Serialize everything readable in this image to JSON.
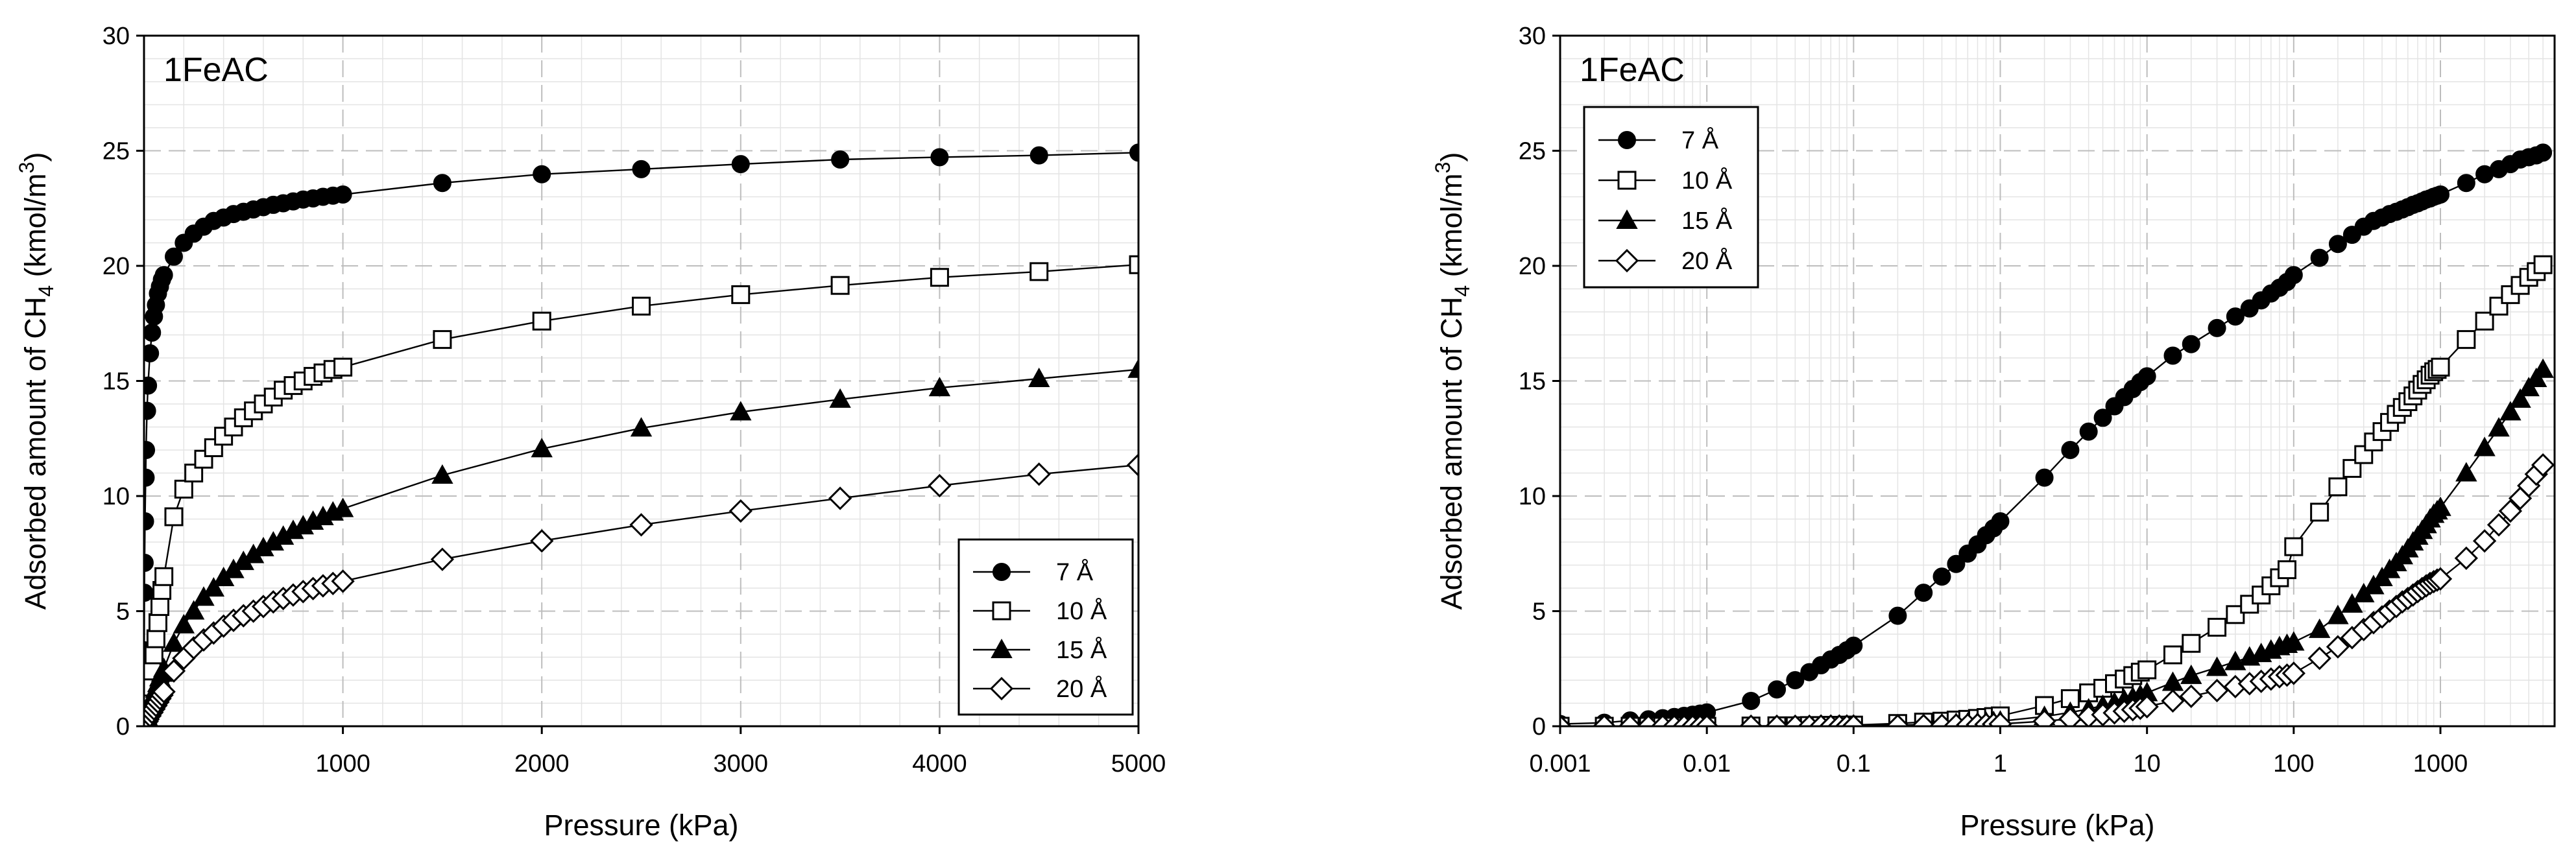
{
  "chart_data": [
    {
      "type": "line",
      "panel_label": "1FeAC",
      "xlabel": "Pressure (kPa)",
      "ylabel": {
        "prefix": "Adsorbed amount of CH",
        "sub": "4",
        "mid": " (kmol/m",
        "sup": "3",
        "suffix": ")"
      },
      "xscale": "linear",
      "xlim": [
        0,
        5000
      ],
      "ylim": [
        0,
        30
      ],
      "xticks": [
        1000,
        2000,
        3000,
        4000,
        5000
      ],
      "xtick_labels": [
        "1000",
        "2000",
        "3000",
        "4000",
        "5000"
      ],
      "yticks": [
        0,
        5,
        10,
        15,
        20,
        25,
        30
      ],
      "ytick_labels": [
        "0",
        "5",
        "10",
        "15",
        "20",
        "25",
        "30"
      ],
      "legend_position": "bottom-right",
      "series": [
        {
          "name": "7 Å",
          "marker": "filled-circle",
          "x": [
            0.5,
            1,
            2,
            3,
            5,
            8,
            10,
            15,
            20,
            30,
            40,
            50,
            60,
            70,
            80,
            90,
            100,
            150,
            200,
            250,
            300,
            350,
            400,
            450,
            500,
            550,
            600,
            650,
            700,
            750,
            800,
            850,
            900,
            950,
            1000,
            1500,
            2000,
            2500,
            3000,
            3500,
            4000,
            4500,
            5000
          ],
          "values": [
            0.8,
            3.3,
            5.8,
            7.1,
            8.9,
            10.8,
            12.0,
            13.7,
            14.8,
            16.2,
            17.1,
            17.8,
            18.3,
            18.8,
            19.1,
            19.4,
            19.6,
            20.4,
            21.0,
            21.4,
            21.7,
            21.95,
            22.1,
            22.25,
            22.35,
            22.45,
            22.55,
            22.65,
            22.72,
            22.8,
            22.88,
            22.93,
            23.0,
            23.05,
            23.1,
            23.6,
            23.98,
            24.2,
            24.42,
            24.62,
            24.72,
            24.8,
            24.92
          ]
        },
        {
          "name": "10 Å",
          "marker": "open-square",
          "x": [
            1,
            2,
            5,
            10,
            15,
            20,
            30,
            40,
            50,
            60,
            70,
            80,
            90,
            100,
            150,
            200,
            250,
            300,
            350,
            400,
            450,
            500,
            550,
            600,
            650,
            700,
            750,
            800,
            850,
            900,
            950,
            1000,
            1500,
            2000,
            2500,
            3000,
            3500,
            4000,
            4500,
            5000
          ],
          "values": [
            0.05,
            0.1,
            0.25,
            0.5,
            0.8,
            1.1,
            1.7,
            2.4,
            3.1,
            3.8,
            4.5,
            5.2,
            5.9,
            6.5,
            9.1,
            10.3,
            11.0,
            11.6,
            12.1,
            12.6,
            13.0,
            13.4,
            13.7,
            14.0,
            14.3,
            14.6,
            14.8,
            15.0,
            15.2,
            15.35,
            15.5,
            15.6,
            16.8,
            17.6,
            18.25,
            18.75,
            19.15,
            19.5,
            19.75,
            20.05
          ]
        },
        {
          "name": "15 Å",
          "marker": "filled-triangle",
          "x": [
            1,
            2,
            5,
            10,
            15,
            20,
            30,
            40,
            50,
            60,
            70,
            80,
            90,
            100,
            150,
            200,
            250,
            300,
            350,
            400,
            450,
            500,
            550,
            600,
            650,
            700,
            750,
            800,
            850,
            900,
            950,
            1000,
            1500,
            2000,
            2500,
            3000,
            3500,
            4000,
            4500,
            5000
          ],
          "values": [
            0.03,
            0.05,
            0.12,
            0.25,
            0.4,
            0.55,
            0.8,
            1.1,
            1.35,
            1.6,
            1.85,
            2.1,
            2.3,
            2.5,
            3.6,
            4.4,
            5.0,
            5.6,
            6.0,
            6.45,
            6.8,
            7.15,
            7.45,
            7.75,
            8.0,
            8.25,
            8.5,
            8.7,
            8.9,
            9.1,
            9.3,
            9.45,
            10.9,
            12.05,
            12.95,
            13.65,
            14.2,
            14.7,
            15.1,
            15.5
          ]
        },
        {
          "name": "20 Å",
          "marker": "open-diamond",
          "x": [
            1,
            2,
            5,
            10,
            15,
            20,
            30,
            40,
            50,
            60,
            70,
            80,
            90,
            100,
            150,
            200,
            250,
            300,
            350,
            400,
            450,
            500,
            550,
            600,
            650,
            700,
            750,
            800,
            850,
            900,
            950,
            1000,
            1500,
            2000,
            2500,
            3000,
            3500,
            4000,
            4500,
            5000
          ],
          "values": [
            0.02,
            0.04,
            0.08,
            0.15,
            0.22,
            0.3,
            0.45,
            0.6,
            0.75,
            0.9,
            1.05,
            1.2,
            1.35,
            1.5,
            2.4,
            2.95,
            3.4,
            3.75,
            4.05,
            4.35,
            4.6,
            4.8,
            5.0,
            5.2,
            5.4,
            5.55,
            5.7,
            5.85,
            5.98,
            6.1,
            6.2,
            6.3,
            7.25,
            8.05,
            8.75,
            9.35,
            9.9,
            10.45,
            10.95,
            11.35
          ]
        }
      ]
    },
    {
      "type": "line",
      "panel_label": "1FeAC",
      "xlabel": "Pressure (kPa)",
      "ylabel": {
        "prefix": "Adsorbed amount of CH",
        "sub": "4",
        "mid": " (kmol/m",
        "sup": "3",
        "suffix": ")"
      },
      "xscale": "log",
      "xlim": [
        0.001,
        6000
      ],
      "ylim": [
        0,
        30
      ],
      "xticks": [
        0.001,
        0.01,
        0.1,
        1,
        10,
        100,
        1000
      ],
      "xtick_labels": [
        "0.001",
        "0.01",
        "0.1",
        "1",
        "10",
        "100",
        "1000"
      ],
      "yticks": [
        0,
        5,
        10,
        15,
        20,
        25,
        30
      ],
      "ytick_labels": [
        "0",
        "5",
        "10",
        "15",
        "20",
        "25",
        "30"
      ],
      "legend_position": "top-left",
      "series": [
        {
          "name": "7 Å",
          "marker": "filled-circle",
          "x": [
            0.001,
            0.002,
            0.003,
            0.004,
            0.005,
            0.006,
            0.007,
            0.008,
            0.009,
            0.01,
            0.02,
            0.03,
            0.04,
            0.05,
            0.06,
            0.07,
            0.08,
            0.09,
            0.1,
            0.2,
            0.3,
            0.4,
            0.5,
            0.6,
            0.7,
            0.8,
            0.9,
            1,
            2,
            3,
            4,
            5,
            6,
            7,
            8,
            9,
            10,
            15,
            20,
            30,
            40,
            50,
            60,
            70,
            80,
            90,
            100,
            150,
            200,
            250,
            300,
            350,
            400,
            450,
            500,
            550,
            600,
            650,
            700,
            750,
            800,
            850,
            900,
            950,
            1000,
            1500,
            2000,
            2500,
            3000,
            3500,
            4000,
            4500,
            5000
          ],
          "values": [
            0.1,
            0.15,
            0.25,
            0.3,
            0.35,
            0.4,
            0.45,
            0.5,
            0.55,
            0.6,
            1.1,
            1.6,
            2.0,
            2.35,
            2.65,
            2.9,
            3.1,
            3.3,
            3.5,
            4.8,
            5.8,
            6.5,
            7.05,
            7.5,
            7.9,
            8.3,
            8.6,
            8.9,
            10.8,
            12.0,
            12.8,
            13.4,
            13.9,
            14.3,
            14.65,
            14.95,
            15.2,
            16.1,
            16.6,
            17.3,
            17.8,
            18.15,
            18.5,
            18.8,
            19.05,
            19.3,
            19.6,
            20.35,
            20.95,
            21.35,
            21.7,
            21.95,
            22.1,
            22.25,
            22.35,
            22.45,
            22.55,
            22.65,
            22.72,
            22.8,
            22.88,
            22.93,
            23.0,
            23.05,
            23.1,
            23.6,
            23.98,
            24.2,
            24.42,
            24.62,
            24.72,
            24.8,
            24.92
          ]
        },
        {
          "name": "10 Å",
          "marker": "open-square",
          "x": [
            0.001,
            0.002,
            0.003,
            0.004,
            0.005,
            0.006,
            0.007,
            0.008,
            0.009,
            0.01,
            0.02,
            0.03,
            0.04,
            0.05,
            0.06,
            0.07,
            0.08,
            0.09,
            0.1,
            0.2,
            0.3,
            0.4,
            0.5,
            0.6,
            0.7,
            0.8,
            0.9,
            1,
            2,
            3,
            4,
            5,
            6,
            7,
            8,
            9,
            10,
            15,
            20,
            30,
            40,
            50,
            60,
            70,
            80,
            90,
            100,
            150,
            200,
            250,
            300,
            350,
            400,
            450,
            500,
            550,
            600,
            650,
            700,
            750,
            800,
            850,
            900,
            950,
            1000,
            1500,
            2000,
            2500,
            3000,
            3500,
            4000,
            4500,
            5000
          ],
          "values": [
            0.0,
            0.0,
            0.0,
            0.0,
            0.0,
            0.0,
            0.0,
            0.0,
            0.0,
            0.0,
            0.01,
            0.02,
            0.02,
            0.03,
            0.03,
            0.04,
            0.04,
            0.05,
            0.05,
            0.12,
            0.18,
            0.22,
            0.27,
            0.3,
            0.34,
            0.38,
            0.42,
            0.45,
            0.9,
            1.2,
            1.45,
            1.65,
            1.85,
            2.05,
            2.2,
            2.35,
            2.45,
            3.1,
            3.6,
            4.3,
            4.85,
            5.3,
            5.7,
            6.1,
            6.45,
            6.8,
            7.8,
            9.3,
            10.4,
            11.2,
            11.8,
            12.35,
            12.8,
            13.2,
            13.55,
            13.85,
            14.1,
            14.35,
            14.6,
            14.85,
            15.05,
            15.25,
            15.4,
            15.5,
            15.6,
            16.8,
            17.6,
            18.25,
            18.75,
            19.15,
            19.5,
            19.75,
            20.05
          ]
        },
        {
          "name": "15 Å",
          "marker": "filled-triangle",
          "x": [
            0.001,
            0.002,
            0.003,
            0.004,
            0.005,
            0.006,
            0.007,
            0.008,
            0.009,
            0.01,
            0.02,
            0.03,
            0.04,
            0.05,
            0.06,
            0.07,
            0.08,
            0.09,
            0.1,
            0.2,
            0.3,
            0.4,
            0.5,
            0.6,
            0.7,
            0.8,
            0.9,
            1,
            2,
            3,
            4,
            5,
            6,
            7,
            8,
            9,
            10,
            15,
            20,
            30,
            40,
            50,
            60,
            70,
            80,
            90,
            100,
            150,
            200,
            250,
            300,
            350,
            400,
            450,
            500,
            550,
            600,
            650,
            700,
            750,
            800,
            850,
            900,
            950,
            1000,
            1500,
            2000,
            2500,
            3000,
            3500,
            4000,
            4500,
            5000
          ],
          "values": [
            0.0,
            0.0,
            0.0,
            0.0,
            0.0,
            0.0,
            0.0,
            0.0,
            0.0,
            0.0,
            0.0,
            0.01,
            0.01,
            0.01,
            0.01,
            0.02,
            0.02,
            0.02,
            0.02,
            0.05,
            0.07,
            0.1,
            0.12,
            0.14,
            0.16,
            0.18,
            0.2,
            0.22,
            0.42,
            0.6,
            0.75,
            0.9,
            1.02,
            1.14,
            1.25,
            1.35,
            1.45,
            1.9,
            2.2,
            2.55,
            2.8,
            3.0,
            3.15,
            3.3,
            3.45,
            3.55,
            3.65,
            4.2,
            4.8,
            5.3,
            5.75,
            6.1,
            6.45,
            6.8,
            7.1,
            7.4,
            7.7,
            8.0,
            8.25,
            8.5,
            8.75,
            9.0,
            9.2,
            9.35,
            9.5,
            11.0,
            12.1,
            12.95,
            13.65,
            14.2,
            14.7,
            15.1,
            15.5
          ]
        },
        {
          "name": "20 Å",
          "marker": "open-diamond",
          "x": [
            0.001,
            0.002,
            0.003,
            0.004,
            0.005,
            0.006,
            0.007,
            0.008,
            0.009,
            0.01,
            0.02,
            0.03,
            0.04,
            0.05,
            0.06,
            0.07,
            0.08,
            0.09,
            0.1,
            0.2,
            0.3,
            0.4,
            0.5,
            0.6,
            0.7,
            0.8,
            0.9,
            1,
            2,
            3,
            4,
            5,
            6,
            7,
            8,
            9,
            10,
            15,
            20,
            30,
            40,
            50,
            60,
            70,
            80,
            90,
            100,
            150,
            200,
            250,
            300,
            350,
            400,
            450,
            500,
            550,
            600,
            650,
            700,
            750,
            800,
            850,
            900,
            950,
            1000,
            1500,
            2000,
            2500,
            3000,
            3500,
            4000,
            4500,
            5000
          ],
          "values": [
            0.0,
            0.0,
            0.0,
            0.0,
            0.0,
            0.0,
            0.0,
            0.0,
            0.0,
            0.0,
            0.0,
            0.0,
            0.0,
            0.0,
            0.01,
            0.01,
            0.01,
            0.01,
            0.01,
            0.02,
            0.03,
            0.04,
            0.05,
            0.06,
            0.07,
            0.08,
            0.09,
            0.1,
            0.22,
            0.32,
            0.42,
            0.5,
            0.58,
            0.65,
            0.72,
            0.78,
            0.85,
            1.1,
            1.3,
            1.55,
            1.72,
            1.85,
            1.95,
            2.05,
            2.15,
            2.22,
            2.3,
            2.95,
            3.45,
            3.85,
            4.2,
            4.5,
            4.75,
            5.0,
            5.2,
            5.4,
            5.55,
            5.7,
            5.85,
            5.98,
            6.1,
            6.2,
            6.28,
            6.35,
            6.4,
            7.3,
            8.05,
            8.75,
            9.35,
            9.9,
            10.45,
            10.95,
            11.35
          ]
        }
      ]
    }
  ]
}
